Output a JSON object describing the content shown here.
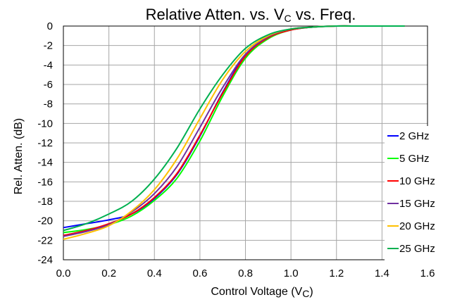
{
  "chart_data": {
    "type": "line",
    "title": {
      "main": "Relative Atten. vs. V",
      "sub": "C",
      "tail": " vs. Freq."
    },
    "xlabel": {
      "main": "Control Voltage (V",
      "sub": "C",
      "tail": ")"
    },
    "ylabel": "Rel. Atten. (dB)",
    "xlim": [
      0,
      1.6
    ],
    "ylim": [
      -24,
      0
    ],
    "xticks": [
      "0.0",
      "0.2",
      "0.4",
      "0.6",
      "0.8",
      "1.0",
      "1.2",
      "1.4",
      "1.6"
    ],
    "yticks": [
      "0",
      "-2",
      "-4",
      "-6",
      "-8",
      "-10",
      "-12",
      "-14",
      "-16",
      "-18",
      "-20",
      "-22",
      "-24"
    ],
    "grid": true,
    "legend_position": "right",
    "series": [
      {
        "name": "2 GHz",
        "color": "#0000ff",
        "x": [
          0,
          0.1,
          0.2,
          0.3,
          0.4,
          0.5,
          0.6,
          0.7,
          0.8,
          0.9,
          1.0,
          1.1,
          1.2,
          1.3,
          1.4,
          1.5
        ],
        "y": [
          -20.7,
          -20.3,
          -19.9,
          -19.3,
          -17.7,
          -15.2,
          -11.3,
          -6.8,
          -3.0,
          -1.2,
          -0.4,
          -0.1,
          0.0,
          0.0,
          0.0,
          0.0
        ]
      },
      {
        "name": "5 GHz",
        "color": "#00ff00",
        "x": [
          0,
          0.1,
          0.2,
          0.3,
          0.4,
          0.5,
          0.6,
          0.7,
          0.8,
          0.9,
          1.0,
          1.1,
          1.2,
          1.3,
          1.4,
          1.5
        ],
        "y": [
          -21.2,
          -20.9,
          -20.4,
          -19.5,
          -17.9,
          -15.6,
          -11.8,
          -7.2,
          -3.3,
          -1.3,
          -0.4,
          -0.1,
          0.0,
          0.0,
          0.0,
          0.0
        ]
      },
      {
        "name": "10 GHz",
        "color": "#ff0000",
        "x": [
          0,
          0.1,
          0.2,
          0.3,
          0.4,
          0.5,
          0.6,
          0.7,
          0.8,
          0.9,
          1.0,
          1.1,
          1.2,
          1.3,
          1.4,
          1.5
        ],
        "y": [
          -21.5,
          -21.0,
          -20.3,
          -19.3,
          -17.6,
          -15.1,
          -11.2,
          -6.9,
          -3.1,
          -1.2,
          -0.4,
          -0.1,
          0.0,
          0.0,
          0.0,
          0.0
        ]
      },
      {
        "name": "15 GHz",
        "color": "#7030a0",
        "x": [
          0,
          0.1,
          0.2,
          0.3,
          0.4,
          0.5,
          0.6,
          0.7,
          0.8,
          0.9,
          1.0,
          1.1,
          1.2,
          1.3,
          1.4,
          1.5
        ],
        "y": [
          -21.6,
          -21.1,
          -20.4,
          -19.1,
          -17.2,
          -14.4,
          -10.4,
          -6.3,
          -2.9,
          -1.1,
          -0.3,
          -0.1,
          0.0,
          0.0,
          0.0,
          0.0
        ]
      },
      {
        "name": "20 GHz",
        "color": "#ffc000",
        "x": [
          0,
          0.1,
          0.2,
          0.3,
          0.4,
          0.5,
          0.6,
          0.7,
          0.8,
          0.9,
          1.0,
          1.1,
          1.2,
          1.3,
          1.4,
          1.5
        ],
        "y": [
          -21.9,
          -21.3,
          -20.5,
          -19.0,
          -16.8,
          -13.6,
          -9.5,
          -5.5,
          -2.6,
          -1.0,
          -0.3,
          -0.1,
          0.0,
          0.0,
          0.0,
          0.0
        ]
      },
      {
        "name": "25 GHz",
        "color": "#00b050",
        "x": [
          0,
          0.1,
          0.2,
          0.3,
          0.4,
          0.5,
          0.6,
          0.7,
          0.8,
          0.9,
          1.0,
          1.1,
          1.2,
          1.3,
          1.4,
          1.5
        ],
        "y": [
          -21.0,
          -20.3,
          -19.3,
          -18.0,
          -15.7,
          -12.5,
          -8.5,
          -5.0,
          -2.3,
          -0.9,
          -0.3,
          -0.1,
          0.0,
          0.0,
          0.0,
          0.0
        ]
      }
    ]
  }
}
